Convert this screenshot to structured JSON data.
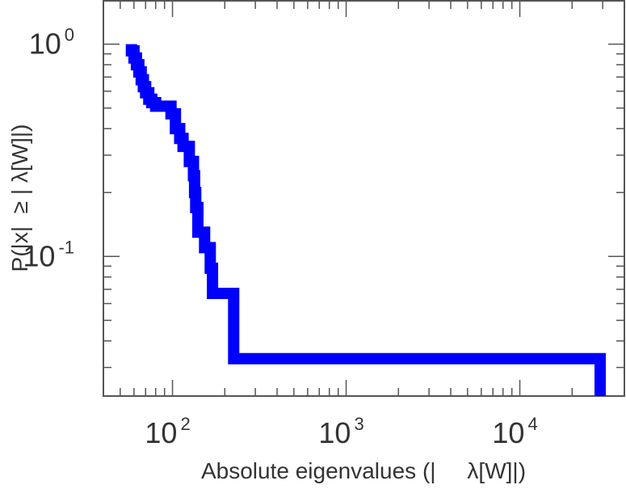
{
  "chart_data": {
    "type": "line",
    "style": "step",
    "xscale": "log",
    "yscale": "log",
    "xlabel": "Absolute eigenvalues (|     λ[W]|)",
    "ylabel": "P(|x|  ≥ | λ[W]|)",
    "xlim": [
      40,
      40000
    ],
    "ylim": [
      0.022,
      1.6
    ],
    "x_ticks": [
      {
        "value": 100,
        "base": "10",
        "exp": "2"
      },
      {
        "value": 1000,
        "base": "10",
        "exp": "3"
      },
      {
        "value": 10000,
        "base": "10",
        "exp": "4"
      }
    ],
    "y_ticks": [
      {
        "value": 1,
        "base": "10",
        "exp": "0"
      },
      {
        "value": 0.1,
        "base": "10",
        "exp": "-1"
      }
    ],
    "line_color": "#0000ff",
    "grid": false,
    "series": [
      {
        "x": [
          58,
          58,
          60,
          60,
          62,
          62,
          64,
          64,
          66,
          66,
          68,
          68,
          70,
          70,
          73,
          73,
          76,
          76,
          80,
          80,
          98,
          98,
          104,
          104,
          110,
          110,
          115,
          115,
          125,
          125,
          132,
          132,
          134,
          134,
          136,
          136,
          140,
          140,
          153,
          153,
          165,
          165,
          170,
          170,
          225,
          225,
          29000,
          29000
        ],
        "y": [
          1.0,
          0.93,
          0.93,
          0.86,
          0.86,
          0.8,
          0.8,
          0.74,
          0.74,
          0.68,
          0.68,
          0.63,
          0.63,
          0.59,
          0.59,
          0.55,
          0.55,
          0.53,
          0.53,
          0.51,
          0.51,
          0.47,
          0.47,
          0.4,
          0.4,
          0.36,
          0.36,
          0.33,
          0.33,
          0.28,
          0.28,
          0.24,
          0.24,
          0.2,
          0.2,
          0.17,
          0.17,
          0.13,
          0.13,
          0.11,
          0.11,
          0.088,
          0.088,
          0.067,
          0.067,
          0.033,
          0.033,
          0.022
        ]
      }
    ]
  }
}
